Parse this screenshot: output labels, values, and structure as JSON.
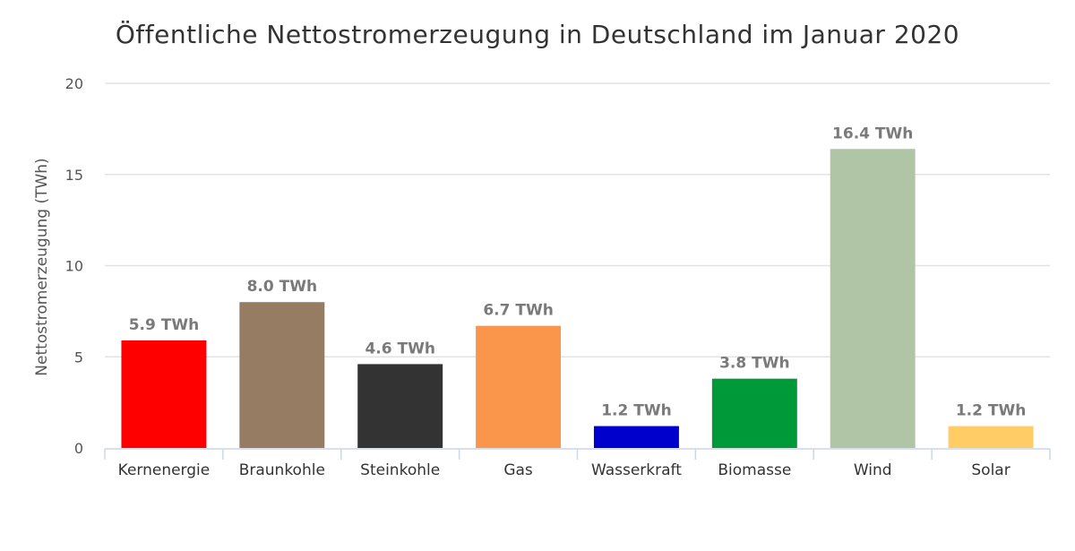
{
  "chart_data": {
    "type": "bar",
    "title": "Öffentliche Nettostromerzeugung in Deutschland im Januar 2020",
    "xlabel": "",
    "ylabel": "Nettostromerzeugung (TWh)",
    "ylim": [
      0,
      20
    ],
    "yticks": [
      0,
      5,
      10,
      15,
      20
    ],
    "grid": true,
    "categories": [
      "Kernenergie",
      "Braunkohle",
      "Steinkohle",
      "Gas",
      "Wasserkraft",
      "Biomasse",
      "Wind",
      "Solar"
    ],
    "values": [
      5.9,
      8.0,
      4.6,
      6.7,
      1.2,
      3.8,
      16.4,
      1.2
    ],
    "data_labels": [
      "5.9 TWh",
      "8.0 TWh",
      "4.6 TWh",
      "6.7 TWh",
      "1.2 TWh",
      "3.8 TWh",
      "16.4 TWh",
      "1.2 TWh"
    ],
    "colors": [
      "#ff0000",
      "#967c62",
      "#333333",
      "#f9964b",
      "#0000cc",
      "#00993a",
      "#afc5a6",
      "#ffcc66"
    ]
  }
}
